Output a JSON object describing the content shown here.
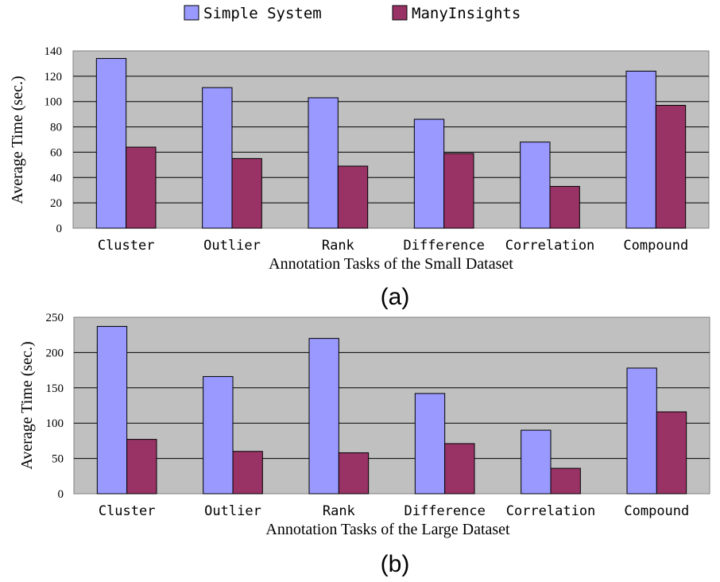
{
  "legend": {
    "entries": [
      {
        "label": "Simple System",
        "color": "#9999ff"
      },
      {
        "label": "ManyInsights",
        "color": "#993366"
      }
    ]
  },
  "chart_data": [
    {
      "type": "bar",
      "panel_label": "(a)",
      "xlabel": "Annotation Tasks of the Small Dataset",
      "ylabel": "Average Time (sec.)",
      "ylim": [
        0,
        140
      ],
      "yticks": [
        0,
        20,
        40,
        60,
        80,
        100,
        120,
        140
      ],
      "grid": true,
      "legend_position": "top-center",
      "categories": [
        "Cluster",
        "Outlier",
        "Rank",
        "Difference",
        "Correlation",
        "Compound"
      ],
      "series": [
        {
          "name": "Simple System",
          "color": "#9999ff",
          "values": [
            134,
            111,
            103,
            86,
            68,
            124
          ]
        },
        {
          "name": "ManyInsights",
          "color": "#993366",
          "values": [
            64,
            55,
            49,
            59,
            33,
            97
          ]
        }
      ]
    },
    {
      "type": "bar",
      "panel_label": "(b)",
      "xlabel": "Annotation Tasks of the Large Dataset",
      "ylabel": "Average Time (sec.)",
      "ylim": [
        0,
        250
      ],
      "yticks": [
        0,
        50,
        100,
        150,
        200,
        250
      ],
      "grid": true,
      "legend_position": "top-center",
      "categories": [
        "Cluster",
        "Outlier",
        "Rank",
        "Difference",
        "Correlation",
        "Compound"
      ],
      "series": [
        {
          "name": "Simple System",
          "color": "#9999ff",
          "values": [
            237,
            166,
            220,
            142,
            90,
            178
          ]
        },
        {
          "name": "ManyInsights",
          "color": "#993366",
          "values": [
            77,
            60,
            58,
            71,
            36,
            116
          ]
        }
      ]
    }
  ]
}
